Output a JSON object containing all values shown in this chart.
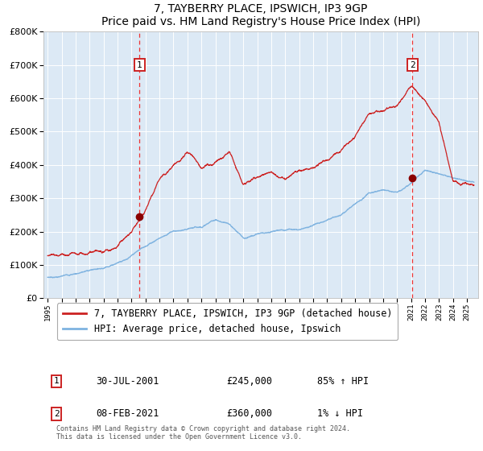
{
  "title": "7, TAYBERRY PLACE, IPSWICH, IP3 9GP",
  "subtitle": "Price paid vs. HM Land Registry's House Price Index (HPI)",
  "hpi_color": "#7fb3e0",
  "price_color": "#cc2222",
  "marker_color": "#8b0000",
  "dashed_color": "#ee3333",
  "bg_color": "#dce9f5",
  "sale1_date": 2001.58,
  "sale1_price": 245000,
  "sale1_label": "30-JUL-2001",
  "sale1_amount": "£245,000",
  "sale1_pct": "85% ↑ HPI",
  "sale2_date": 2021.1,
  "sale2_price": 360000,
  "sale2_label": "08-FEB-2021",
  "sale2_amount": "£360,000",
  "sale2_pct": "1% ↓ HPI",
  "annotation1_label": "1",
  "annotation2_label": "2",
  "footer": "Contains HM Land Registry data © Crown copyright and database right 2024.\nThis data is licensed under the Open Government Licence v3.0.",
  "legend_line1": "7, TAYBERRY PLACE, IPSWICH, IP3 9GP (detached house)",
  "legend_line2": "HPI: Average price, detached house, Ipswich",
  "hpi_key_years": [
    1995,
    1996,
    1997,
    1998,
    1999,
    2000,
    2001,
    2002,
    2003,
    2004,
    2005,
    2006,
    2007,
    2008,
    2009,
    2010,
    2011,
    2012,
    2013,
    2014,
    2015,
    2016,
    2017,
    2018,
    2019,
    2020,
    2021,
    2022,
    2023,
    2024,
    2025.5
  ],
  "hpi_key_vals": [
    63000,
    67000,
    76000,
    87000,
    97000,
    117000,
    140000,
    168000,
    195000,
    218000,
    218000,
    225000,
    248000,
    232000,
    193000,
    202000,
    212000,
    218000,
    224000,
    240000,
    258000,
    278000,
    308000,
    340000,
    348000,
    335000,
    358000,
    395000,
    388000,
    375000,
    368000
  ],
  "prop_key_years": [
    1995,
    1996,
    1997,
    1998,
    1999,
    2000,
    2001,
    2002,
    2003,
    2004,
    2005,
    2006,
    2007,
    2008,
    2009,
    2010,
    2011,
    2012,
    2013,
    2014,
    2015,
    2016,
    2017,
    2018,
    2019,
    2020,
    2021,
    2022,
    2023,
    2024,
    2025,
    2025.5
  ],
  "prop_key_vals": [
    128000,
    133000,
    143000,
    152000,
    158000,
    172000,
    210000,
    275000,
    370000,
    415000,
    450000,
    400000,
    430000,
    475000,
    370000,
    390000,
    405000,
    395000,
    415000,
    430000,
    450000,
    470000,
    520000,
    595000,
    608000,
    618000,
    675000,
    630000,
    565000,
    380000,
    372000,
    370000
  ],
  "ylim_max": 800000,
  "xlim_start": 1994.7,
  "xlim_end": 2025.8
}
